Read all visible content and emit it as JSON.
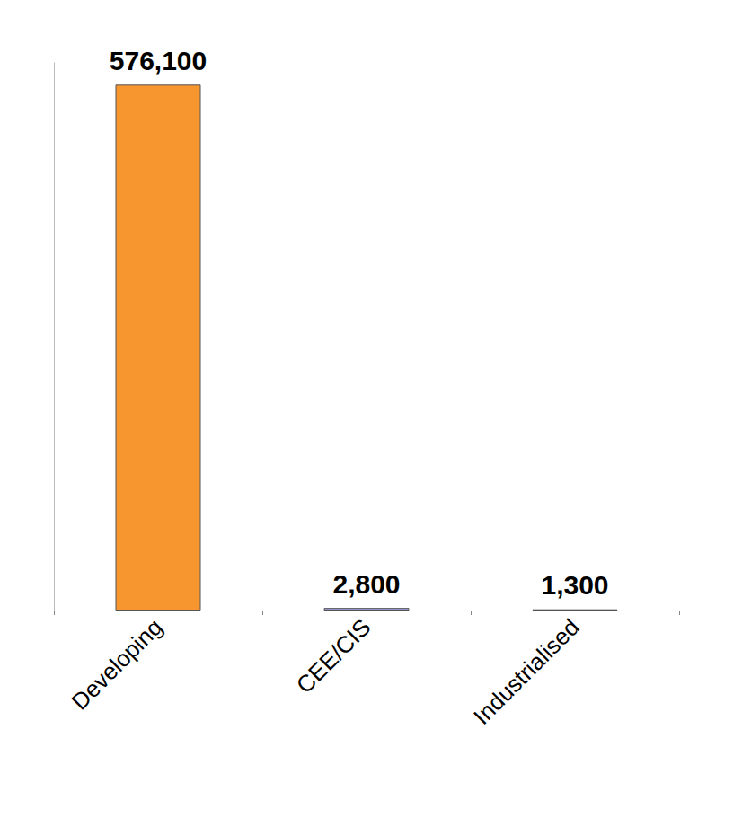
{
  "chart_data": {
    "type": "bar",
    "categories": [
      "Developing",
      "CEE/CIS",
      "Industrialised"
    ],
    "values": [
      576100,
      2800,
      1300
    ],
    "value_labels": [
      "576,100",
      "2,800",
      "1,300"
    ],
    "colors": [
      "#f7962f",
      "#9c9ce6",
      "#9c9ce6"
    ],
    "ylim": [
      0,
      600000
    ],
    "data_labels": true,
    "tick_labels": "x",
    "grid": false
  }
}
